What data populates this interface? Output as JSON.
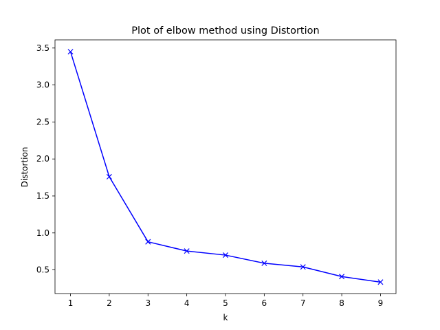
{
  "chart_data": {
    "type": "line",
    "title": "Plot of elbow method using Distortion",
    "xlabel": "k",
    "ylabel": "Distortion",
    "x": [
      1,
      2,
      3,
      4,
      5,
      6,
      7,
      8,
      9
    ],
    "series": [
      {
        "values": [
          3.45,
          1.76,
          0.88,
          0.755,
          0.7,
          0.59,
          0.54,
          0.41,
          0.335
        ],
        "color": "#0000ff",
        "marker": "x"
      }
    ],
    "xticks": [
      "1",
      "2",
      "3",
      "4",
      "5",
      "6",
      "7",
      "8",
      "9"
    ],
    "yticks": [
      "0.5",
      "1.0",
      "1.5",
      "2.0",
      "2.5",
      "3.0",
      "3.5"
    ],
    "xlim": [
      0.6,
      9.4
    ],
    "ylim": [
      0.18,
      3.61
    ],
    "grid": false,
    "legend": "none"
  }
}
